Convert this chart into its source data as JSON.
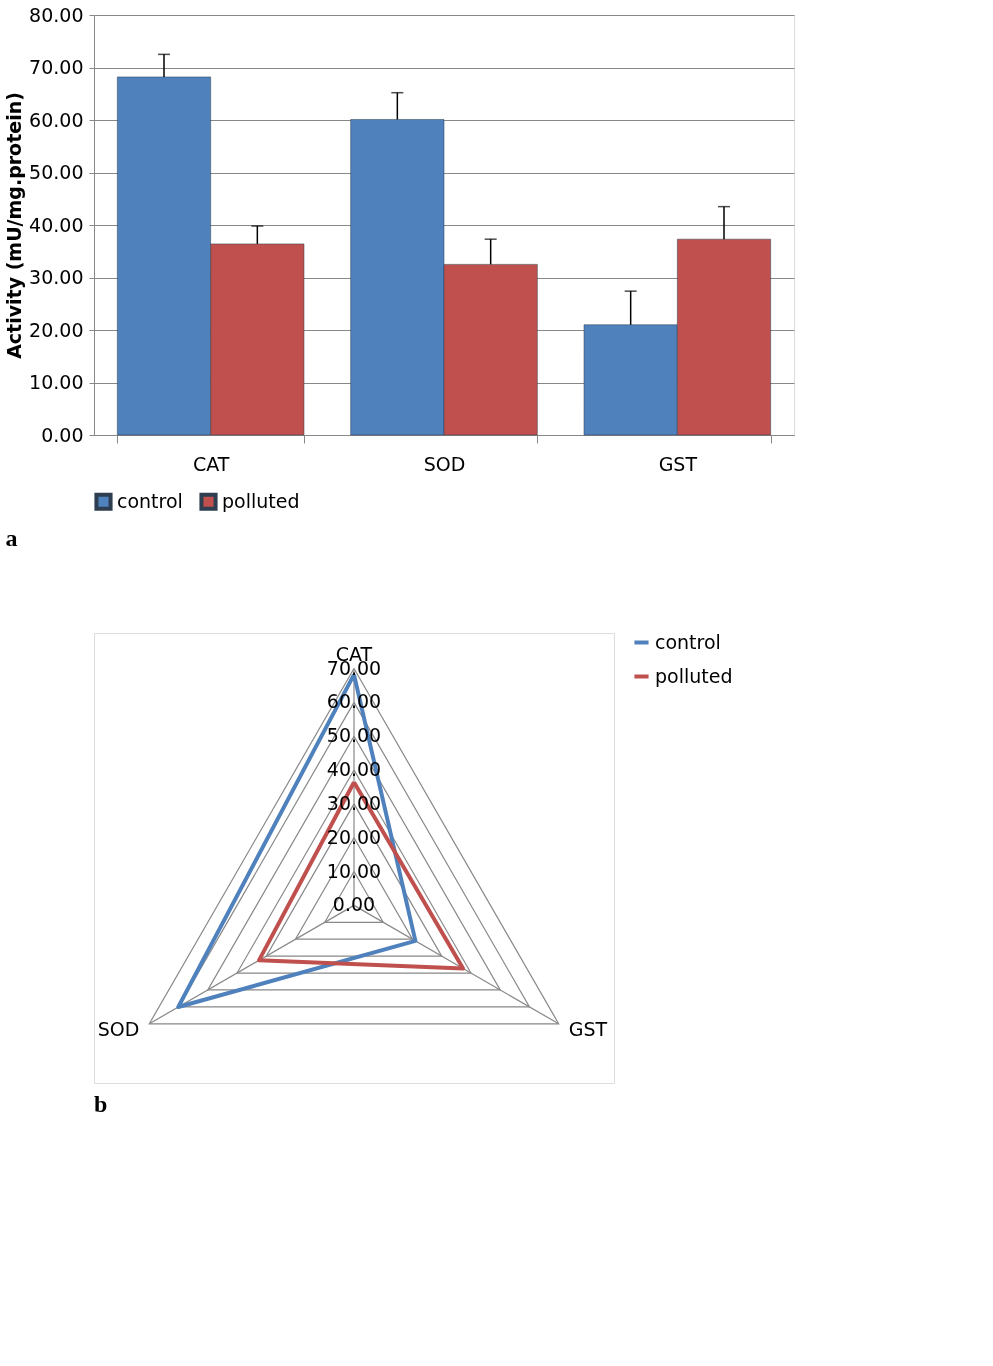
{
  "chart_data": [
    {
      "type": "bar",
      "ylabel": "Activity (mU/mg.protein)",
      "categories": [
        "CAT",
        "SOD",
        "GST"
      ],
      "series": [
        {
          "name": "control",
          "color": "#4f81bd",
          "values": [
            68.2,
            60.1,
            21.0
          ],
          "errors": [
            4.3,
            5.1,
            6.4
          ]
        },
        {
          "name": "polluted",
          "color": "#c0504d",
          "values": [
            36.4,
            32.5,
            37.3
          ],
          "errors": [
            3.4,
            4.8,
            6.2
          ]
        }
      ],
      "ylim": [
        0,
        80
      ],
      "yticks": [
        {
          "value": 0,
          "label": "0.00"
        },
        {
          "value": 10,
          "label": "10.00"
        },
        {
          "value": 20,
          "label": "20.00"
        },
        {
          "value": 30,
          "label": "30.00"
        },
        {
          "value": 40,
          "label": "40.00"
        },
        {
          "value": 50,
          "label": "50.00"
        },
        {
          "value": 60,
          "label": "60.00"
        },
        {
          "value": 70,
          "label": "70.00"
        },
        {
          "value": 80,
          "label": "80.00"
        }
      ],
      "grid": "y",
      "legend": "bottom",
      "annotations": [
        "a"
      ]
    },
    {
      "type": "radar",
      "categories": [
        "CAT",
        "GST",
        "SOD"
      ],
      "series": [
        {
          "name": "control",
          "color": "#4f81bd",
          "values": [
            68.2,
            21.0,
            60.1
          ]
        },
        {
          "name": "polluted",
          "color": "#c0504d",
          "values": [
            36.4,
            37.3,
            32.5
          ]
        }
      ],
      "ylim": [
        0,
        70
      ],
      "yticks": [
        {
          "value": 0,
          "label": "0.00"
        },
        {
          "value": 10,
          "label": "10.00"
        },
        {
          "value": 20,
          "label": "20.00"
        },
        {
          "value": 30,
          "label": "30.00"
        },
        {
          "value": 40,
          "label": "40.00"
        },
        {
          "value": 50,
          "label": "50.00"
        },
        {
          "value": 60,
          "label": "60.00"
        },
        {
          "value": 70,
          "label": "70.00"
        }
      ],
      "grid": true,
      "legend": "right",
      "marker": "none",
      "annotations": [
        "b"
      ]
    }
  ]
}
